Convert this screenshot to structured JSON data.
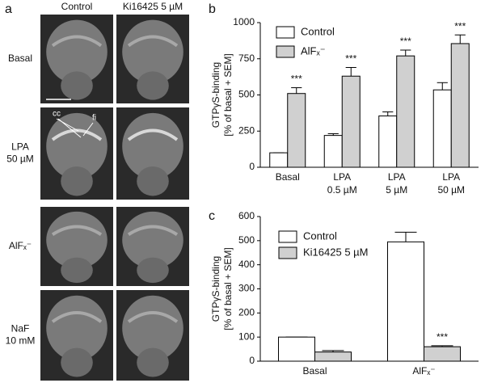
{
  "panel_labels": [
    "a",
    "b",
    "c"
  ],
  "image_panel": {
    "column_labels": [
      "Control",
      "Ki16425 5 µM"
    ],
    "row_labels": [
      [
        "Basal"
      ],
      [
        "LPA",
        "50 µM"
      ],
      [
        "AlFₓ⁻"
      ],
      [
        "NaF",
        "10 mM"
      ]
    ],
    "annotations": [
      "cc",
      "fi"
    ]
  },
  "chart_data": [
    {
      "type": "bar",
      "ylabel": [
        "GTPγS-binding",
        "[% of basal + SEM]"
      ],
      "categories": [
        [
          "Basal"
        ],
        [
          "LPA",
          "0.5 µM"
        ],
        [
          "LPA",
          "5 µM"
        ],
        [
          "LPA",
          "50 µM"
        ]
      ],
      "series": [
        {
          "name": "Control",
          "color": "#ffffff",
          "values": [
            100,
            220,
            355,
            535
          ],
          "errors": [
            0,
            12,
            28,
            50
          ]
        },
        {
          "name": "AlFₓ⁻",
          "color": "#d0d0d0",
          "values": [
            510,
            630,
            770,
            855
          ],
          "errors": [
            40,
            60,
            40,
            60
          ],
          "significance": [
            "***",
            "***",
            "***",
            "***"
          ]
        }
      ],
      "ylim": [
        0,
        1000
      ],
      "yticks": [
        0,
        250,
        500,
        750,
        1000
      ],
      "legend": "top-left"
    },
    {
      "type": "bar",
      "ylabel": [
        "GTPγS-binding",
        "[% of basal + SEM]"
      ],
      "categories": [
        [
          "Basal"
        ],
        [
          "AlFₓ⁻"
        ]
      ],
      "series": [
        {
          "name": "Control",
          "color": "#ffffff",
          "values": [
            100,
            495
          ],
          "errors": [
            0,
            40
          ]
        },
        {
          "name": "Ki16425 5 µM",
          "color": "#d0d0d0",
          "values": [
            38,
            60
          ],
          "errors": [
            6,
            4
          ],
          "significance": [
            null,
            "***"
          ]
        }
      ],
      "ylim": [
        0,
        600
      ],
      "yticks": [
        0,
        100,
        200,
        300,
        400,
        500,
        600
      ],
      "legend": "top-left"
    }
  ]
}
